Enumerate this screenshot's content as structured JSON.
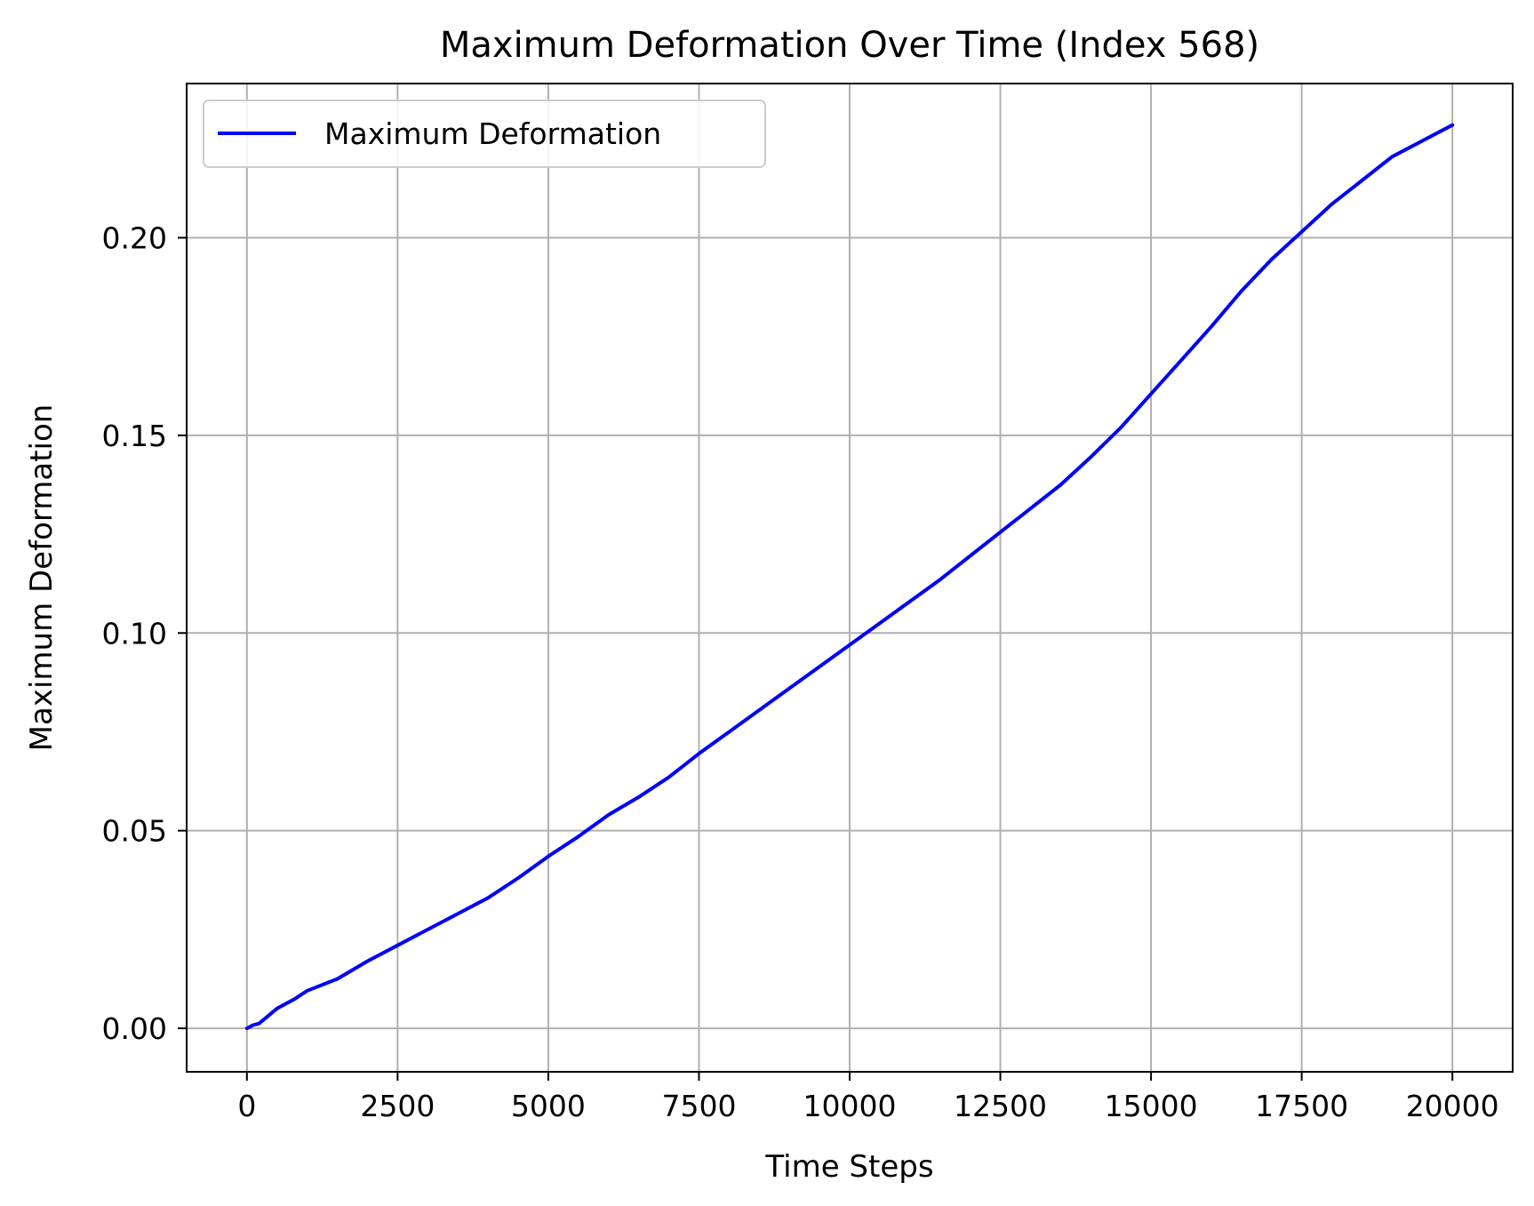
{
  "chart_data": {
    "type": "line",
    "title": "Maximum Deformation Over Time (Index 568)",
    "xlabel": "Time Steps",
    "ylabel": "Maximum Deformation",
    "xlim": [
      -1000,
      21000
    ],
    "ylim": [
      -0.011,
      0.239
    ],
    "xticks": [
      0,
      2500,
      5000,
      7500,
      10000,
      12500,
      15000,
      17500,
      20000
    ],
    "xtick_labels": [
      "0",
      "2500",
      "5000",
      "7500",
      "10000",
      "12500",
      "15000",
      "17500",
      "20000"
    ],
    "yticks": [
      0.0,
      0.05,
      0.1,
      0.15,
      0.2
    ],
    "ytick_labels": [
      "0.00",
      "0.05",
      "0.10",
      "0.15",
      "0.20"
    ],
    "grid": true,
    "legend_position": "top-left",
    "series": [
      {
        "name": "Maximum Deformation",
        "color": "#0000ff",
        "x": [
          0,
          100,
          200,
          500,
          800,
          1000,
          1500,
          2000,
          2500,
          3000,
          3500,
          4000,
          4500,
          5000,
          5500,
          6000,
          6500,
          7000,
          7500,
          8000,
          8500,
          9000,
          9500,
          10000,
          10500,
          11000,
          11500,
          12000,
          12500,
          13000,
          13500,
          14000,
          14500,
          15000,
          15500,
          16000,
          16500,
          17000,
          17500,
          18000,
          18500,
          19000,
          19500,
          20000
        ],
        "y": [
          0.0,
          0.0008,
          0.0012,
          0.005,
          0.0075,
          0.0095,
          0.0125,
          0.017,
          0.021,
          0.025,
          0.029,
          0.033,
          0.038,
          0.0435,
          0.0485,
          0.054,
          0.0585,
          0.0635,
          0.0695,
          0.075,
          0.0805,
          0.086,
          0.0915,
          0.097,
          0.1025,
          0.108,
          0.1135,
          0.1195,
          0.1255,
          0.1315,
          0.1375,
          0.1445,
          0.152,
          0.1605,
          0.169,
          0.1775,
          0.1865,
          0.1945,
          0.2015,
          0.2085,
          0.2145,
          0.2205,
          0.2245,
          0.2285
        ]
      }
    ]
  }
}
